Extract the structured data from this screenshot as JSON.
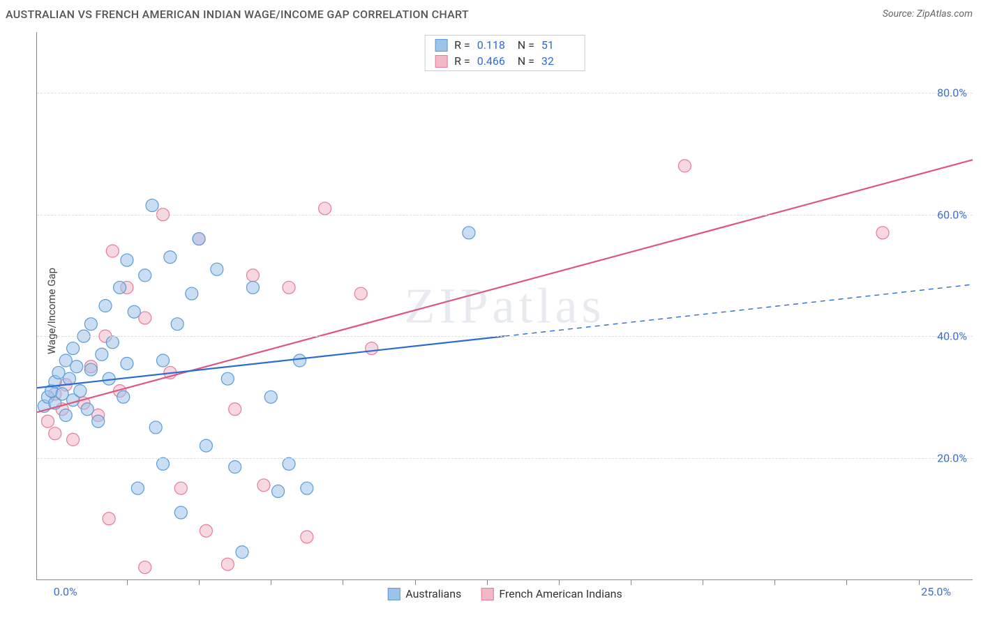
{
  "header": {
    "title": "AUSTRALIAN VS FRENCH AMERICAN INDIAN WAGE/INCOME GAP CORRELATION CHART",
    "source": "Source: ZipAtlas.com"
  },
  "axes": {
    "y_label": "Wage/Income Gap",
    "y_ticks": [
      20.0,
      40.0,
      60.0,
      80.0
    ],
    "y_tick_labels": [
      "20.0%",
      "40.0%",
      "60.0%",
      "80.0%"
    ],
    "y_min": 0.0,
    "y_max": 90.0,
    "x_ticks": [
      0.0,
      25.0
    ],
    "x_tick_labels": [
      "0.0%",
      "25.0%"
    ],
    "x_minor_ticks": [
      2.0,
      4.0,
      6.0,
      8.0,
      10.0,
      12.0,
      14.0,
      16.0,
      18.0,
      20.0,
      22.0,
      24.0
    ],
    "x_min": -0.5,
    "x_max": 25.5
  },
  "style": {
    "grid_color": "#dddddd",
    "axis_color": "#888888",
    "tick_label_color": "#3b6fc9",
    "bg": "#ffffff",
    "font_family": "Arial, sans-serif",
    "title_color": "#555555",
    "point_radius": 9,
    "point_opacity": 0.55,
    "line_width": 2.2
  },
  "watermark": "ZIPatlas",
  "series": {
    "australians": {
      "label": "Australians",
      "color_fill": "#9cc3ea",
      "color_stroke": "#5a9bd8",
      "line_color": "#2b6cd4",
      "stats": {
        "R": "0.118",
        "N": "51"
      },
      "trend": {
        "x1": -0.5,
        "y1": 31.5,
        "x2": 25.5,
        "y2": 48.5,
        "solid_until_x": 12.5
      },
      "points": [
        [
          -0.3,
          28.5
        ],
        [
          -0.2,
          30.0
        ],
        [
          -0.1,
          31.0
        ],
        [
          0.0,
          29.0
        ],
        [
          0.0,
          32.5
        ],
        [
          0.1,
          34.0
        ],
        [
          0.2,
          30.5
        ],
        [
          0.3,
          36.0
        ],
        [
          0.3,
          27.0
        ],
        [
          0.4,
          33.0
        ],
        [
          0.5,
          38.0
        ],
        [
          0.5,
          29.5
        ],
        [
          0.6,
          35.0
        ],
        [
          0.7,
          31.0
        ],
        [
          0.8,
          40.0
        ],
        [
          0.9,
          28.0
        ],
        [
          1.0,
          34.5
        ],
        [
          1.0,
          42.0
        ],
        [
          1.2,
          26.0
        ],
        [
          1.3,
          37.0
        ],
        [
          1.4,
          45.0
        ],
        [
          1.5,
          33.0
        ],
        [
          1.6,
          39.0
        ],
        [
          1.8,
          48.0
        ],
        [
          1.9,
          30.0
        ],
        [
          2.0,
          52.5
        ],
        [
          2.0,
          35.5
        ],
        [
          2.2,
          44.0
        ],
        [
          2.3,
          15.0
        ],
        [
          2.5,
          50.0
        ],
        [
          2.7,
          61.5
        ],
        [
          2.8,
          25.0
        ],
        [
          3.0,
          36.0
        ],
        [
          3.0,
          19.0
        ],
        [
          3.2,
          53.0
        ],
        [
          3.4,
          42.0
        ],
        [
          3.5,
          11.0
        ],
        [
          3.8,
          47.0
        ],
        [
          4.0,
          56.0
        ],
        [
          4.2,
          22.0
        ],
        [
          4.5,
          51.0
        ],
        [
          4.8,
          33.0
        ],
        [
          5.0,
          18.5
        ],
        [
          5.2,
          4.5
        ],
        [
          5.5,
          48.0
        ],
        [
          6.0,
          30.0
        ],
        [
          6.2,
          14.5
        ],
        [
          6.5,
          19.0
        ],
        [
          6.8,
          36.0
        ],
        [
          7.0,
          15.0
        ],
        [
          11.5,
          57.0
        ]
      ]
    },
    "french_ai": {
      "label": "French American Indians",
      "color_fill": "#f2b8c6",
      "color_stroke": "#e67a9a",
      "line_color": "#e0557f",
      "stats": {
        "R": "0.466",
        "N": "32"
      },
      "trend": {
        "x1": -0.5,
        "y1": 27.5,
        "x2": 25.5,
        "y2": 69.0,
        "solid_until_x": 25.5
      },
      "points": [
        [
          -0.2,
          26.0
        ],
        [
          0.0,
          24.0
        ],
        [
          0.0,
          30.5
        ],
        [
          0.2,
          28.0
        ],
        [
          0.3,
          32.0
        ],
        [
          0.5,
          23.0
        ],
        [
          0.8,
          29.0
        ],
        [
          1.0,
          35.0
        ],
        [
          1.2,
          27.0
        ],
        [
          1.4,
          40.0
        ],
        [
          1.5,
          10.0
        ],
        [
          1.6,
          54.0
        ],
        [
          1.8,
          31.0
        ],
        [
          2.0,
          48.0
        ],
        [
          2.5,
          2.0
        ],
        [
          3.0,
          60.0
        ],
        [
          3.2,
          34.0
        ],
        [
          3.5,
          15.0
        ],
        [
          4.0,
          56.0
        ],
        [
          4.2,
          8.0
        ],
        [
          4.8,
          2.5
        ],
        [
          5.0,
          28.0
        ],
        [
          5.5,
          50.0
        ],
        [
          5.8,
          15.5
        ],
        [
          6.5,
          48.0
        ],
        [
          7.0,
          7.0
        ],
        [
          7.5,
          61.0
        ],
        [
          8.5,
          47.0
        ],
        [
          8.8,
          38.0
        ],
        [
          17.5,
          68.0
        ],
        [
          23.0,
          57.0
        ],
        [
          2.5,
          43.0
        ]
      ]
    }
  },
  "legend_top_labels": {
    "R": "R  =",
    "N": "N  ="
  },
  "legend_bottom_order": [
    "australians",
    "french_ai"
  ]
}
